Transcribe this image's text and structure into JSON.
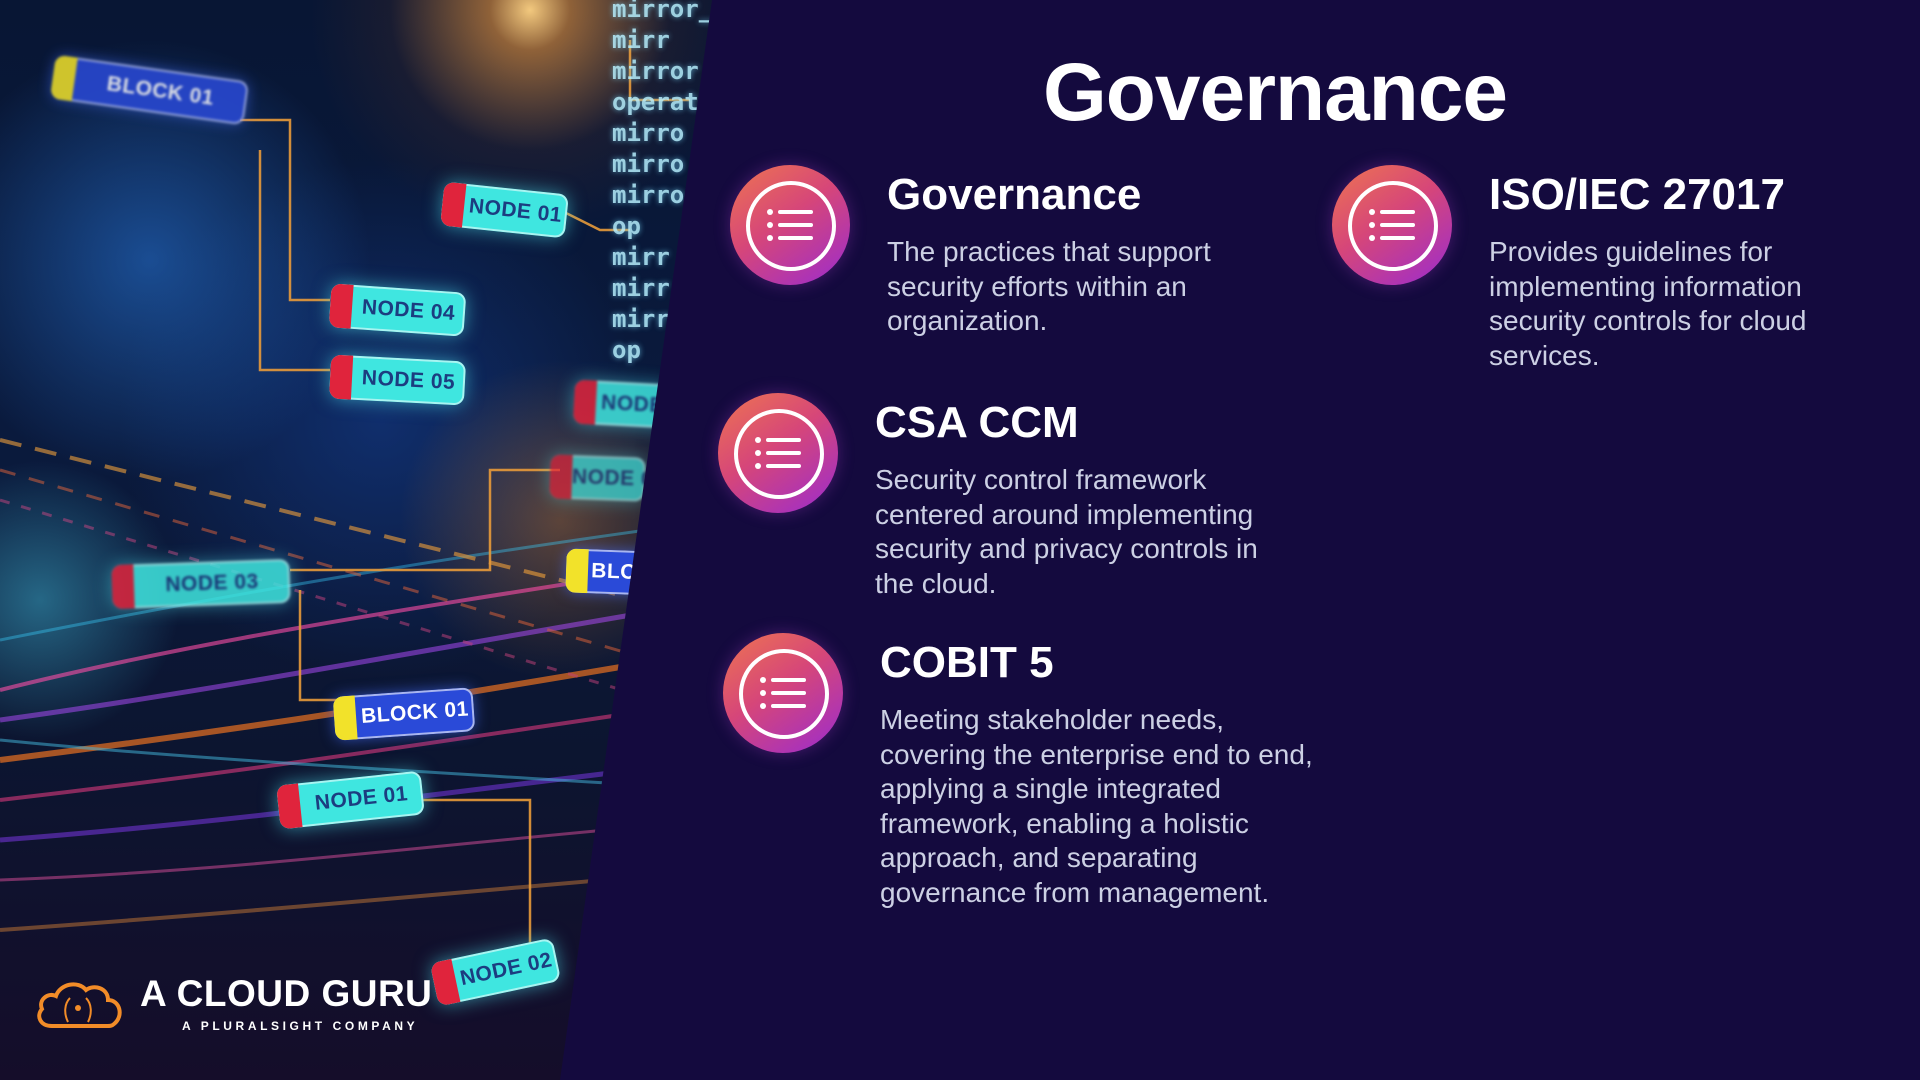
{
  "slide": {
    "title": "Governance",
    "items": [
      {
        "id": "governance",
        "heading": "Governance",
        "description": "The practices that support security efforts within an organization.",
        "icon": "list-icon"
      },
      {
        "id": "iso",
        "heading": "ISO/IEC 27017",
        "description": "Provides guidelines for implementing information security controls for cloud services.",
        "icon": "list-icon"
      },
      {
        "id": "csa",
        "heading": "CSA CCM",
        "description": "Security control framework centered around implementing security and privacy controls in the cloud.",
        "icon": "list-icon"
      },
      {
        "id": "cobit",
        "heading": "COBIT 5",
        "description": "Meeting stakeholder needs, covering the enterprise end to end, applying a single integrated framework, enabling a holistic approach, and separating governance from management.",
        "icon": "list-icon"
      }
    ]
  },
  "background_art": {
    "nodes": [
      "BLOCK 01",
      "NODE 01",
      "NODE 04",
      "NODE 05",
      "NODE 03",
      "BLOCK 01",
      "NODE 01",
      "NODE 02",
      "NODE",
      "NODE 0",
      "BLOC"
    ],
    "code_lines": [
      "mirror_",
      "mirr",
      "mirror",
      "operat",
      "mirro",
      "mirro",
      "mirro",
      "op",
      "mirr",
      "mirr",
      "mirr",
      "op"
    ]
  },
  "logo": {
    "name": "A CLOUD GURU",
    "tagline": "A PLURALSIGHT COMPANY",
    "icon": "cloud-logo-icon"
  },
  "colors": {
    "background": "#140a3e",
    "icon_gradient_start": "#ee7550",
    "icon_gradient_end": "#9a2bd0",
    "node_fill": "#3fe6e0",
    "node_cap": "#e0243c",
    "block_fill": "#2a4ad8",
    "block_cap": "#f2e22a"
  }
}
